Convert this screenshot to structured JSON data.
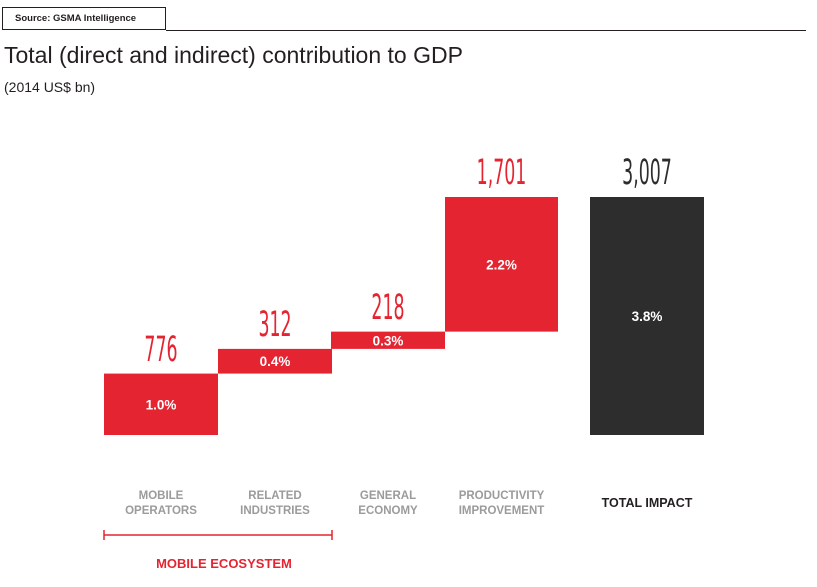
{
  "source": "Source: GSMA Intelligence",
  "title": "Total (direct and indirect) contribution to GDP",
  "subtitle": "(2014 US$ bn)",
  "colors": {
    "accent": "#e52431",
    "total": "#2d2d2d",
    "label_grey": "#9b9b9b"
  },
  "chart_data": {
    "type": "waterfall",
    "title": "Total (direct and indirect) contribution to GDP",
    "subtitle": "(2014 US$ bn)",
    "categories": [
      [
        "MOBILE",
        "OPERATORS"
      ],
      [
        "RELATED",
        "INDUSTRIES"
      ],
      [
        "GENERAL",
        "ECONOMY"
      ],
      [
        "PRODUCTIVITY",
        "IMPROVEMENT"
      ],
      [
        "TOTAL IMPACT"
      ]
    ],
    "values": [
      776,
      312,
      218,
      1701,
      3007
    ],
    "value_labels": [
      "776",
      "312",
      "218",
      "1,701",
      "3,007"
    ],
    "gdp_share_labels": [
      "1.0%",
      "0.4%",
      "0.3%",
      "2.2%",
      "3.8%"
    ],
    "is_total": [
      false,
      false,
      false,
      false,
      true
    ],
    "group": {
      "label": "MOBILE ECOSYSTEM",
      "spans_categories": [
        0,
        1
      ]
    }
  }
}
